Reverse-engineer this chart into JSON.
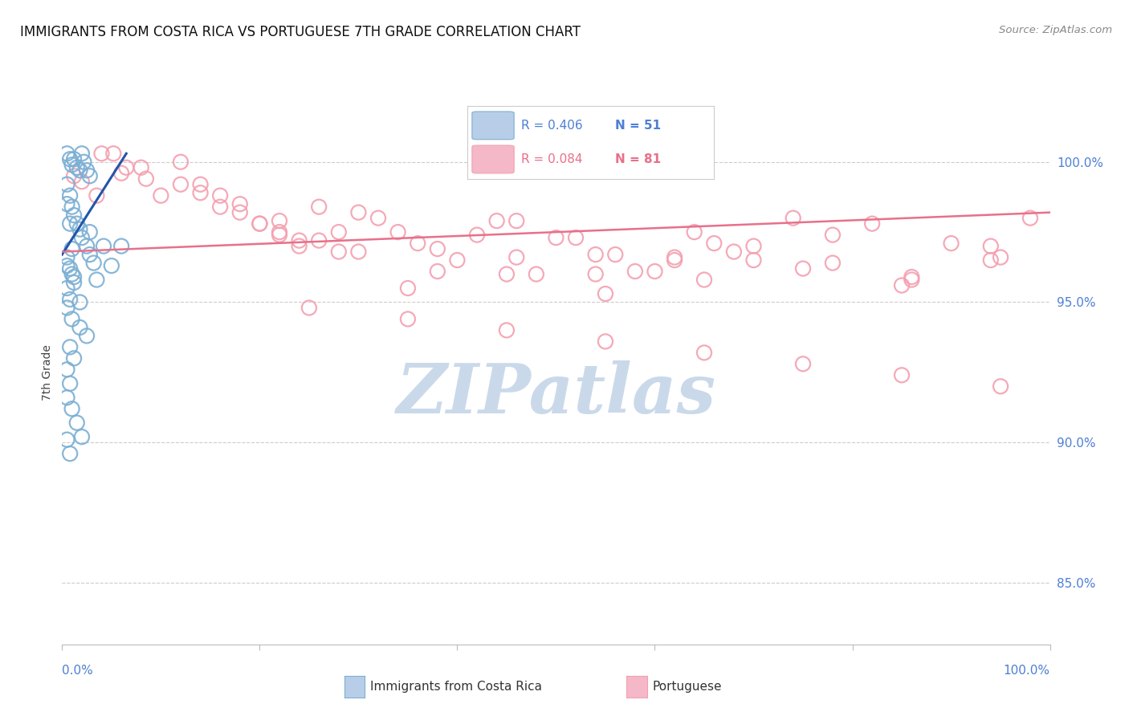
{
  "title": "IMMIGRANTS FROM COSTA RICA VS PORTUGUESE 7TH GRADE CORRELATION CHART",
  "source": "Source: ZipAtlas.com",
  "ylabel": "7th Grade",
  "ytick_labels": [
    "85.0%",
    "90.0%",
    "95.0%",
    "100.0%"
  ],
  "ytick_vals": [
    0.85,
    0.9,
    0.95,
    1.0
  ],
  "xtick_left": "0.0%",
  "xtick_right": "100.0%",
  "xmin": 0.0,
  "xmax": 1.0,
  "ymin": 0.828,
  "ymax": 1.022,
  "blue_R": "0.406",
  "blue_N": "51",
  "pink_R": "0.084",
  "pink_N": "81",
  "blue_dot_edge": "#7BAFD4",
  "pink_dot_edge": "#F4A0B0",
  "blue_line_color": "#2255AA",
  "pink_line_color": "#E8708A",
  "legend_blue_fill": "#B8CEE8",
  "legend_pink_fill": "#F4B8C8",
  "blue_label": "Immigrants from Costa Rica",
  "pink_label": "Portuguese",
  "axis_color": "#4D7FD4",
  "title_color": "#111111",
  "source_color": "#888888",
  "grid_color": "#CCCCCC",
  "bg_color": "#FFFFFF",
  "watermark_text": "ZIPatlas",
  "blue_x": [
    0.005,
    0.008,
    0.01,
    0.012,
    0.015,
    0.018,
    0.02,
    0.022,
    0.025,
    0.028,
    0.005,
    0.008,
    0.01,
    0.012,
    0.015,
    0.018,
    0.02,
    0.025,
    0.028,
    0.032,
    0.005,
    0.008,
    0.01,
    0.012,
    0.005,
    0.008,
    0.005,
    0.01,
    0.018,
    0.025,
    0.008,
    0.012,
    0.005,
    0.008,
    0.005,
    0.01,
    0.015,
    0.02,
    0.035,
    0.042,
    0.005,
    0.008,
    0.01,
    0.005,
    0.012,
    0.018,
    0.05,
    0.06,
    0.005,
    0.008,
    0.028
  ],
  "blue_y": [
    1.003,
    1.001,
    0.999,
    1.001,
    0.998,
    0.997,
    1.003,
    1.0,
    0.997,
    0.995,
    0.992,
    0.988,
    0.984,
    0.981,
    0.978,
    0.976,
    0.973,
    0.97,
    0.967,
    0.964,
    0.966,
    0.962,
    0.96,
    0.957,
    0.955,
    0.951,
    0.948,
    0.944,
    0.941,
    0.938,
    0.934,
    0.93,
    0.926,
    0.921,
    0.916,
    0.912,
    0.907,
    0.902,
    0.958,
    0.97,
    0.985,
    0.978,
    0.969,
    0.963,
    0.959,
    0.95,
    0.963,
    0.97,
    0.901,
    0.896,
    0.975
  ],
  "pink_x": [
    0.012,
    0.02,
    0.035,
    0.052,
    0.065,
    0.085,
    0.1,
    0.12,
    0.14,
    0.16,
    0.18,
    0.2,
    0.22,
    0.24,
    0.26,
    0.28,
    0.16,
    0.2,
    0.24,
    0.28,
    0.32,
    0.36,
    0.4,
    0.44,
    0.48,
    0.52,
    0.56,
    0.6,
    0.64,
    0.68,
    0.04,
    0.08,
    0.12,
    0.18,
    0.22,
    0.26,
    0.3,
    0.34,
    0.38,
    0.42,
    0.46,
    0.5,
    0.54,
    0.58,
    0.62,
    0.66,
    0.7,
    0.74,
    0.78,
    0.82,
    0.86,
    0.9,
    0.94,
    0.98,
    0.06,
    0.14,
    0.22,
    0.3,
    0.38,
    0.46,
    0.54,
    0.62,
    0.7,
    0.78,
    0.86,
    0.94,
    0.35,
    0.45,
    0.55,
    0.65,
    0.75,
    0.85,
    0.95,
    0.25,
    0.35,
    0.45,
    0.55,
    0.65,
    0.75,
    0.85,
    0.95
  ],
  "pink_y": [
    0.995,
    0.993,
    0.988,
    1.003,
    0.998,
    0.994,
    0.988,
    1.0,
    0.992,
    0.988,
    0.982,
    0.978,
    0.974,
    0.97,
    0.984,
    0.975,
    0.984,
    0.978,
    0.972,
    0.968,
    0.98,
    0.971,
    0.965,
    0.979,
    0.96,
    0.973,
    0.967,
    0.961,
    0.975,
    0.968,
    1.003,
    0.998,
    0.992,
    0.985,
    0.979,
    0.972,
    0.982,
    0.975,
    0.969,
    0.974,
    0.979,
    0.973,
    0.967,
    0.961,
    0.966,
    0.971,
    0.965,
    0.98,
    0.974,
    0.978,
    0.958,
    0.971,
    0.965,
    0.98,
    0.996,
    0.989,
    0.975,
    0.968,
    0.961,
    0.966,
    0.96,
    0.965,
    0.97,
    0.964,
    0.959,
    0.97,
    0.955,
    0.96,
    0.953,
    0.958,
    0.962,
    0.956,
    0.966,
    0.948,
    0.944,
    0.94,
    0.936,
    0.932,
    0.928,
    0.924,
    0.92
  ],
  "blue_trend_x": [
    0.0,
    0.065
  ],
  "blue_trend_y": [
    0.967,
    1.003
  ],
  "pink_trend_x": [
    0.0,
    1.0
  ],
  "pink_trend_y": [
    0.968,
    0.982
  ]
}
